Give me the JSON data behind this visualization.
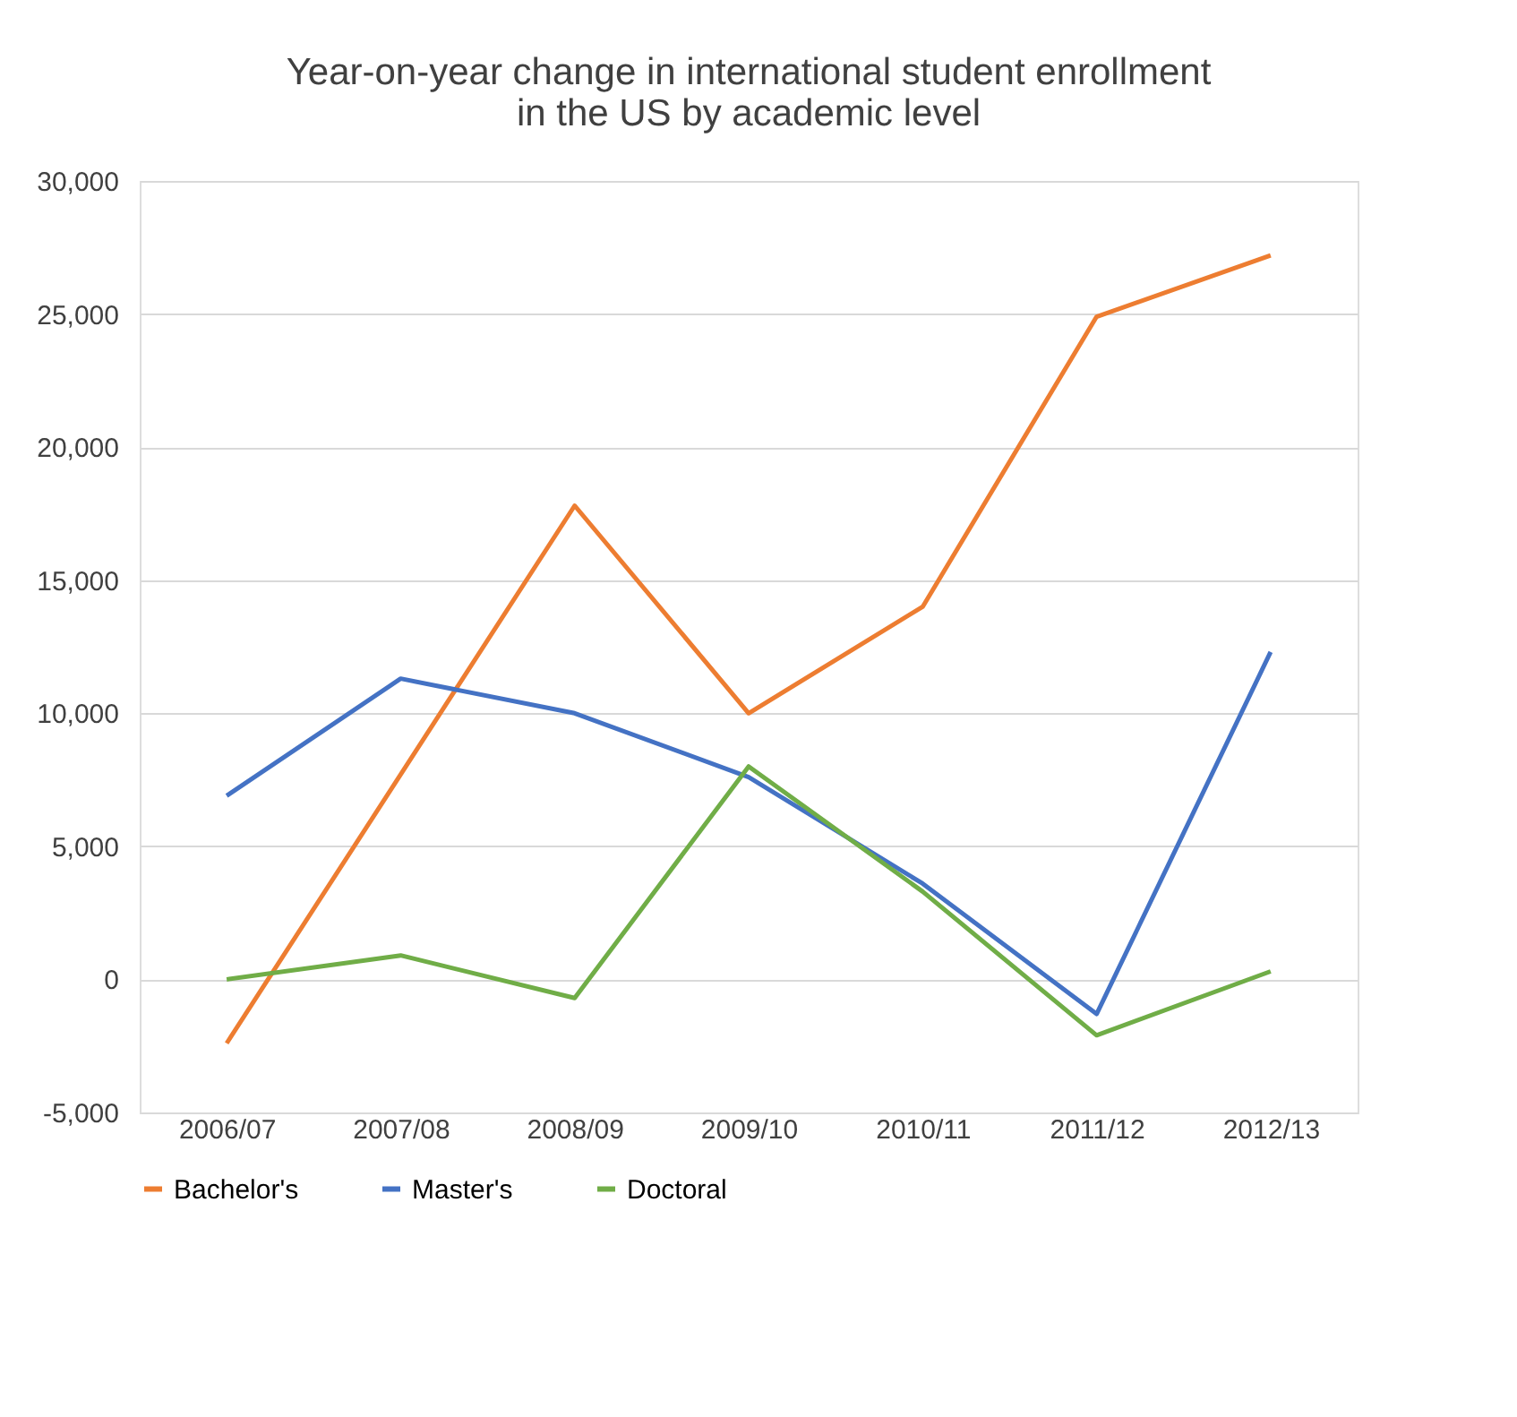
{
  "chart_data": {
    "type": "line",
    "title": [
      "Year-on-year change in international student enrollment",
      "in the US by academic level"
    ],
    "categories": [
      "2006/07",
      "2007/08",
      "2008/09",
      "2009/10",
      "2010/11",
      "2011/12",
      "2012/13"
    ],
    "series": [
      {
        "name": "Bachelor's",
        "color": "#ed7d31",
        "values": [
          -2400,
          7700,
          17800,
          10000,
          14000,
          24900,
          27200
        ]
      },
      {
        "name": "Master's",
        "color": "#4472c4",
        "values": [
          6900,
          11300,
          10000,
          7600,
          3600,
          -1300,
          12300
        ]
      },
      {
        "name": "Doctoral",
        "color": "#70ad47",
        "values": [
          0,
          900,
          -700,
          8000,
          3300,
          -2100,
          300
        ]
      }
    ],
    "ylim": [
      -5000,
      30000
    ],
    "yticks": [
      {
        "value": -5000,
        "label": "-5,000"
      },
      0,
      {
        "value": 5000,
        "label": "5,000"
      },
      {
        "value": 10000,
        "label": "10,000"
      },
      {
        "value": 15000,
        "label": "15,000"
      },
      {
        "value": 20000,
        "label": "20,000"
      },
      {
        "value": 25000,
        "label": "25,000"
      },
      {
        "value": 30000,
        "label": "30,000"
      }
    ],
    "grid": "y",
    "legend": "bottom",
    "marker": "none",
    "line_style": "solid"
  }
}
